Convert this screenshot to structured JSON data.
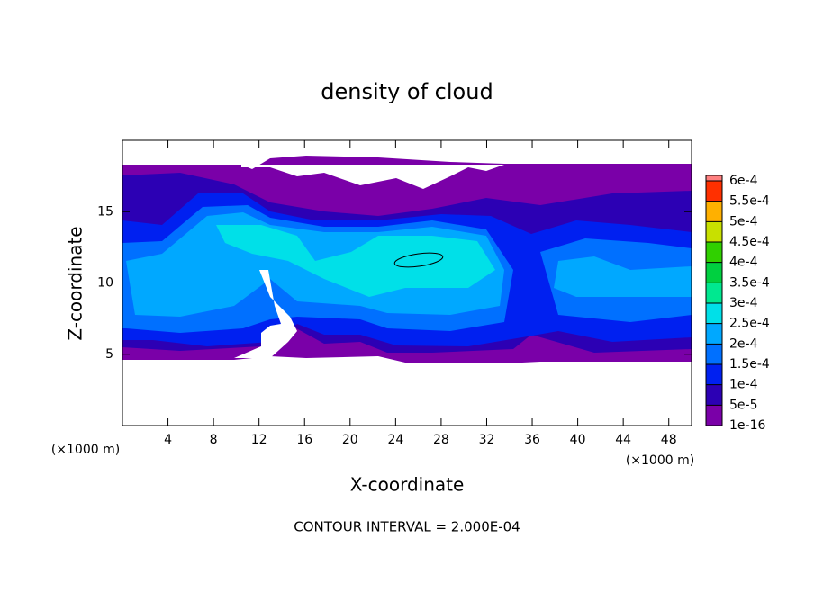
{
  "chart_data": {
    "type": "contour",
    "title": "density of cloud",
    "x_label": "X-coordinate",
    "y_label": "Z-coordinate",
    "x_unit_labels": [
      "(×1000 m)",
      "(×1000 m)"
    ],
    "footnote": "CONTOUR INTERVAL = 2.000E-04",
    "xlim": [
      0,
      50
    ],
    "xticks": [
      4,
      8,
      12,
      16,
      20,
      24,
      28,
      32,
      36,
      40,
      44,
      48
    ],
    "ylim": [
      0,
      20
    ],
    "yticks": [
      5,
      10,
      15
    ],
    "colorbar": {
      "ticks": [
        1e-16,
        {
          "value": 5e-05,
          "label": "5e-5"
        },
        {
          "value": 0.0001,
          "label": "1e-4"
        },
        {
          "value": 0.00015,
          "label": "1.5e-4"
        },
        {
          "value": 0.0002,
          "label": "2e-4"
        },
        {
          "value": 0.00025,
          "label": "2.5e-4"
        },
        {
          "value": 0.0003,
          "label": "3e-4"
        },
        {
          "value": 0.00035,
          "label": "3.5e-4"
        },
        {
          "value": 0.0004,
          "label": "4e-4"
        },
        {
          "value": 0.00045,
          "label": "4.5e-4"
        },
        {
          "value": 0.0005,
          "label": "5e-4"
        },
        {
          "value": 0.00055,
          "label": "5.5e-4"
        },
        {
          "value": 0.0006,
          "label": "6e-4"
        }
      ],
      "colors": [
        "#7a00a8",
        "#2c00b4",
        "#0020f0",
        "#0070ff",
        "#00a8ff",
        "#00e0e8",
        "#00e890",
        "#00d040",
        "#30d000",
        "#c8e000",
        "#ffb000",
        "#ff3000",
        "#ff8080"
      ]
    }
  }
}
